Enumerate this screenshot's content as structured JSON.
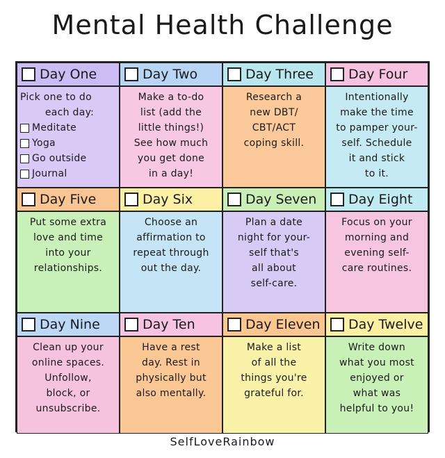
{
  "title": "Mental Health Challenge",
  "footer": "SelfLoveRainbow",
  "cells": [
    {
      "day": "Day One",
      "lines": [
        "Pick one to do",
        "each day:"
      ],
      "options": [
        "Meditate",
        "Yoga",
        "Go outside",
        "Journal"
      ]
    },
    {
      "day": "Day Two",
      "lines": [
        "Make a to-do",
        "list (add the",
        "little things!)",
        "See how much",
        "you get done",
        "in a day!"
      ]
    },
    {
      "day": "Day Three",
      "lines": [
        "Research a",
        "new DBT/",
        "CBT/ACT",
        "coping skill."
      ]
    },
    {
      "day": "Day Four",
      "lines": [
        "Intentionally",
        "make the time",
        "to pamper your-",
        "self. Schedule",
        "it and stick",
        "to it."
      ]
    },
    {
      "day": "Day Five",
      "lines": [
        "Put some extra",
        "love and time",
        "into your",
        "relationships."
      ]
    },
    {
      "day": "Day Six",
      "lines": [
        "Choose an",
        "affirmation to",
        "repeat through",
        "out the day."
      ]
    },
    {
      "day": "Day Seven",
      "lines": [
        "Plan a date",
        "night for your-",
        "self that's",
        "all about",
        "self-care."
      ]
    },
    {
      "day": "Day Eight",
      "lines": [
        "Focus on your",
        "morning and",
        "evening self-",
        "care routines."
      ]
    },
    {
      "day": "Day Nine",
      "lines": [
        "Clean up your",
        "online spaces.",
        "Unfollow,",
        "block, or",
        "unsubscribe."
      ]
    },
    {
      "day": "Day Ten",
      "lines": [
        "Have a rest",
        "day. Rest in",
        "physically but",
        "also mentally."
      ]
    },
    {
      "day": "Day Eleven",
      "lines": [
        "Make a list",
        "of all the",
        "things you're",
        "grateful for."
      ]
    },
    {
      "day": "Day Twelve",
      "lines": [
        "Write down",
        "what you most",
        "enjoyed or",
        "what was",
        "helpful to you!"
      ]
    }
  ]
}
